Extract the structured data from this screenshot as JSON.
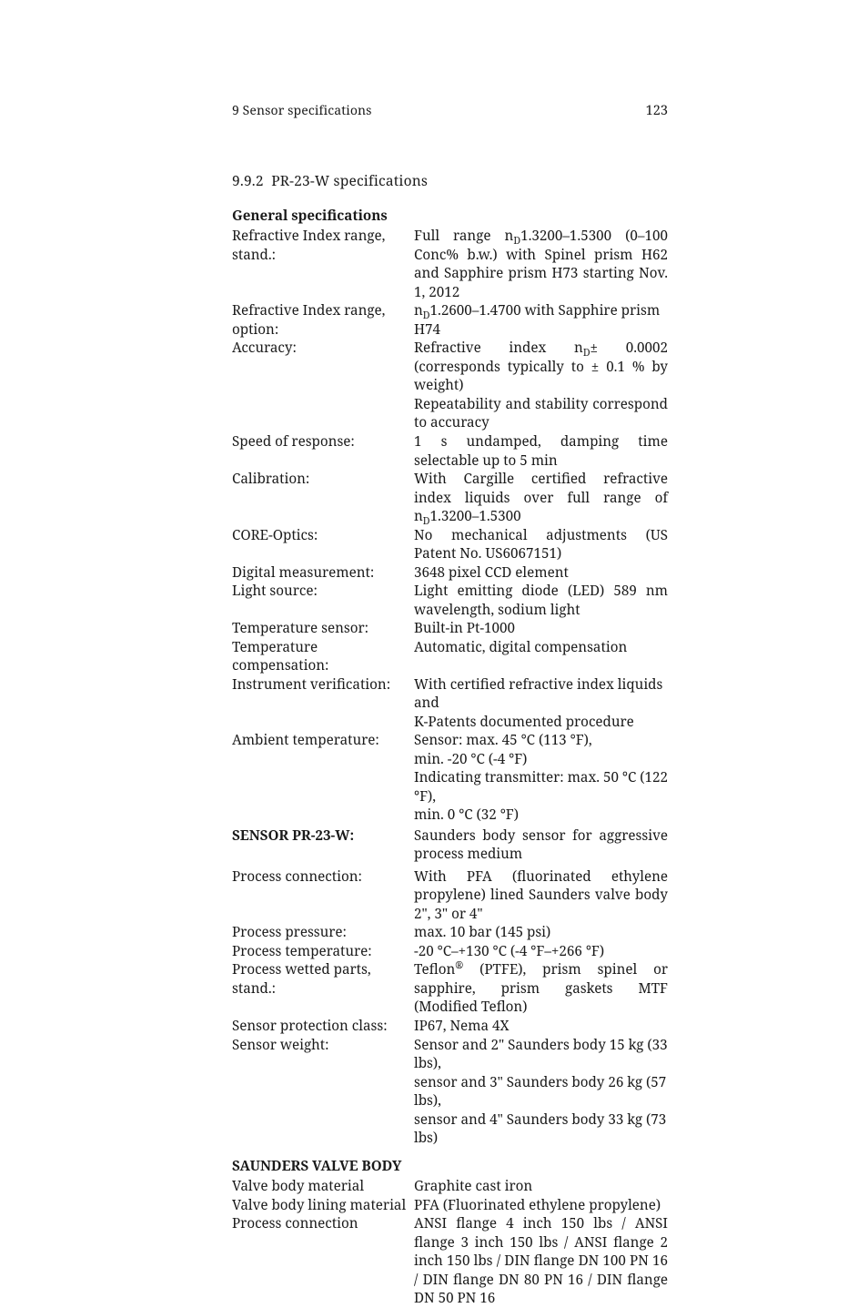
{
  "page": {
    "running_head_chapter": "9 Sensor specifications",
    "page_number": "123",
    "section_number": "9.9.2",
    "section_title": "PR-23-W specifications"
  },
  "general": {
    "heading": "General specifications",
    "rows": [
      {
        "label": "Refractive Index range, stand.:",
        "value_html": "Full range n<span class=\"sub\">D</span>1.3200–1.5300 (0–100 Conc% b.w.)  with Spinel prism H62 and Sapphire prism H73 starting Nov. 1, 2012"
      },
      {
        "label": "Refractive Index range, option:",
        "value_html": "n<span class=\"sub\">D</span>1.2600–1.4700 with Sapphire prism H74",
        "left": true
      },
      {
        "label": "Accuracy:",
        "value_html": "Refractive index n<span class=\"sub\">D</span>± 0.0002 (corresponds typically to ± 0.1 % by weight)"
      },
      {
        "label": "",
        "value_html": "Repeatability and stability correspond to accuracy"
      },
      {
        "label": "Speed of response:",
        "value_html": "1 s undamped, damping time selectable up to 5 min"
      },
      {
        "label": "Calibration:",
        "value_html": "With Cargille certified refractive index liquids over full range of n<span class=\"sub\">D</span>1.3200–1.5300"
      },
      {
        "label": "CORE-Optics:",
        "value_html": "No mechanical adjustments (US Patent No. US6067151)"
      },
      {
        "label": "Digital measurement:",
        "value_html": "3648 pixel CCD element",
        "left": true
      },
      {
        "label": "Light source:",
        "value_html": "Light emitting diode (LED) 589 nm wavelength, sodium light"
      },
      {
        "label": "Temperature sensor:",
        "value_html": "Built-in Pt-1000",
        "left": true
      },
      {
        "label": "Temperature compensation:",
        "value_html": "Automatic, digital compensation",
        "left": true
      },
      {
        "label": "Instrument verification:",
        "value_html": "With certified refractive index liquids and",
        "left": true
      },
      {
        "label": "",
        "value_html": "K-Patents documented procedure",
        "left": true
      },
      {
        "label": "Ambient temperature:",
        "value_html": "Sensor: max. 45 °C (113 °F),",
        "left": true
      },
      {
        "label": "",
        "value_html": "min. -20 °C (-4 °F)",
        "left": true
      },
      {
        "label": "",
        "value_html": "Indicating transmitter: max. 50 °C (122 °F),",
        "left": true
      },
      {
        "label": "",
        "value_html": "min. 0 °C (32 °F)",
        "left": true
      }
    ]
  },
  "sensor": {
    "heading": "SENSOR PR-23-W:",
    "heading_value_html": "Saunders body sensor for aggressive process medium",
    "rows": [
      {
        "label": "Process connection:",
        "value_html": "With PFA (fluorinated ethylene propylene) lined Saunders valve body 2\", 3\" or 4\""
      },
      {
        "label": "Process pressure:",
        "value_html": "max. 10 bar (145 psi)",
        "left": true
      },
      {
        "label": "Process temperature:",
        "value_html": "-20 °C–+130 °C (-4 °F–+266 °F)",
        "left": true
      },
      {
        "label": "Process wetted parts, stand.:",
        "value_html": "Teflon<span class=\"sup\">®</span> (PTFE), prism spinel or sapphire, prism gaskets MTF (Modified Teflon)"
      },
      {
        "label": "Sensor protection class:",
        "value_html": "IP67, Nema 4X",
        "left": true
      },
      {
        "label": "Sensor weight:",
        "value_html": "Sensor and 2\" Saunders body 15 kg (33 lbs),",
        "left": true
      },
      {
        "label": "",
        "value_html": "sensor and 3\" Saunders body 26 kg (57 lbs),",
        "left": true
      },
      {
        "label": "",
        "value_html": "sensor and 4\" Saunders body 33 kg (73 lbs)",
        "left": true
      }
    ]
  },
  "valve": {
    "heading": "SAUNDERS VALVE BODY",
    "rows": [
      {
        "label": "Valve body material",
        "value_html": "Graphite cast iron",
        "left": true
      },
      {
        "label": "Valve body lining material",
        "value_html": "PFA (Fluorinated ethylene propylene)",
        "left": true
      },
      {
        "label": "Process connection",
        "value_html": "ANSI flange 4 inch 150 lbs / ANSI flange 3 inch 150 lbs / ANSI flange 2 inch 150 lbs / DIN flange DN 100 PN 16 / DIN flange DN 80 PN 16 / DIN flange DN 50 PN 16"
      }
    ]
  }
}
